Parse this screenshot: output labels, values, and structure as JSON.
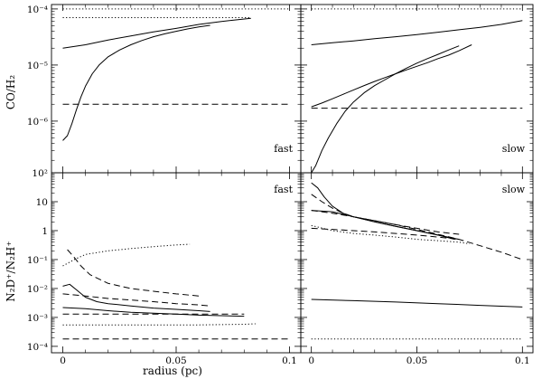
{
  "figure": {
    "ylabel_top": "CO/H₂",
    "ylabel_bottom": "N₂D⁺/N₂H⁺",
    "xlabel": "radius (pc)"
  },
  "chart_data": [
    {
      "type": "line",
      "label": "fast",
      "ylabel": "CO/H₂",
      "xlim": [
        -0.005,
        0.105
      ],
      "ylim": [
        1.2e-07,
        0.00012
      ],
      "yscale": "log",
      "ytick_values": [
        1e-07,
        1e-06,
        1e-05,
        0.0001
      ],
      "ytick_labels": [
        "10⁻⁷",
        "10⁻⁶",
        "10⁻⁵",
        "10⁻⁴"
      ],
      "series": [
        {
          "style": "solid",
          "x": [
            0,
            0.01,
            0.02,
            0.03,
            0.04,
            0.05,
            0.06,
            0.07,
            0.083
          ],
          "y": [
            2e-05,
            2.3e-05,
            2.8e-05,
            3.3e-05,
            3.9e-05,
            4.5e-05,
            5.3e-05,
            6e-05,
            6.8e-05
          ]
        },
        {
          "style": "solid",
          "x": [
            0,
            0.002,
            0.004,
            0.006,
            0.008,
            0.01,
            0.013,
            0.016,
            0.02,
            0.025,
            0.03,
            0.035,
            0.04,
            0.045,
            0.05,
            0.055,
            0.06,
            0.065
          ],
          "y": [
            4.5e-07,
            5.5e-07,
            9e-07,
            1.6e-06,
            2.7e-06,
            4.2e-06,
            7e-06,
            1e-05,
            1.4e-05,
            1.85e-05,
            2.3e-05,
            2.75e-05,
            3.2e-05,
            3.6e-05,
            4e-05,
            4.4e-05,
            4.8e-05,
            5.1e-05
          ]
        },
        {
          "style": "dotted",
          "x": [
            0,
            0.083
          ],
          "y": [
            7e-05,
            7e-05
          ]
        },
        {
          "style": "dotted",
          "x": [
            0,
            0.1
          ],
          "y": [
            0.0001,
            0.0001
          ]
        },
        {
          "style": "dashed",
          "x": [
            0,
            0.1
          ],
          "y": [
            2e-06,
            2e-06
          ]
        }
      ]
    },
    {
      "type": "line",
      "label": "slow",
      "ylabel": "",
      "xlim": [
        -0.005,
        0.105
      ],
      "ylim": [
        1.2e-07,
        0.00012
      ],
      "yscale": "log",
      "ytick_values": [
        1e-07,
        1e-06,
        1e-05,
        0.0001
      ],
      "ytick_labels": [],
      "series": [
        {
          "style": "solid",
          "x": [
            0,
            0.01,
            0.02,
            0.03,
            0.04,
            0.05,
            0.06,
            0.07,
            0.08,
            0.09,
            0.1
          ],
          "y": [
            2.3e-05,
            2.5e-05,
            2.7e-05,
            2.95e-05,
            3.2e-05,
            3.5e-05,
            3.85e-05,
            4.25e-05,
            4.7e-05,
            5.3e-05,
            6.2e-05
          ]
        },
        {
          "style": "solid",
          "x": [
            0,
            0.002,
            0.005,
            0.008,
            0.012,
            0.016,
            0.02,
            0.025,
            0.03,
            0.035,
            0.04,
            0.045,
            0.05,
            0.055,
            0.06,
            0.065,
            0.07
          ],
          "y": [
            1.2e-07,
            1.6e-07,
            3e-07,
            5e-07,
            9e-07,
            1.5e-06,
            2.2e-06,
            3.2e-06,
            4.3e-06,
            5.5e-06,
            7e-06,
            8.8e-06,
            1.08e-05,
            1.3e-05,
            1.55e-05,
            1.85e-05,
            2.2e-05
          ]
        },
        {
          "style": "solid",
          "x": [
            0,
            0.005,
            0.01,
            0.015,
            0.02,
            0.025,
            0.03,
            0.035,
            0.04,
            0.045,
            0.05,
            0.055,
            0.06,
            0.065,
            0.07,
            0.076
          ],
          "y": [
            1.8e-06,
            2.1e-06,
            2.5e-06,
            3e-06,
            3.6e-06,
            4.3e-06,
            5.1e-06,
            6e-06,
            7e-06,
            8.2e-06,
            9.5e-06,
            1.1e-05,
            1.3e-05,
            1.5e-05,
            1.8e-05,
            2.3e-05
          ]
        },
        {
          "style": "dotted",
          "x": [
            0,
            0.1
          ],
          "y": [
            0.0001,
            0.0001
          ]
        },
        {
          "style": "dashed",
          "x": [
            0,
            0.1
          ],
          "y": [
            1.7e-06,
            1.7e-06
          ]
        }
      ]
    },
    {
      "type": "line",
      "label": "fast",
      "ylabel": "N₂D⁺/N₂H⁺",
      "xlim": [
        -0.005,
        0.105
      ],
      "ylim": [
        6e-05,
        100
      ],
      "yscale": "log",
      "ytick_values": [
        0.0001,
        0.001,
        0.01,
        0.1,
        1,
        10,
        100
      ],
      "ytick_labels": [
        "10⁻⁴",
        "10⁻³",
        "10⁻²",
        "10⁻¹",
        "1",
        "10",
        "10²"
      ],
      "series": [
        {
          "style": "dotted",
          "x": [
            0,
            0.005,
            0.01,
            0.02,
            0.03,
            0.04,
            0.05,
            0.056
          ],
          "y": [
            0.06,
            0.1,
            0.15,
            0.2,
            0.24,
            0.28,
            0.32,
            0.34
          ]
        },
        {
          "style": "dashed",
          "x": [
            0.002,
            0.005,
            0.008,
            0.012,
            0.02,
            0.03,
            0.04,
            0.05,
            0.06
          ],
          "y": [
            0.22,
            0.12,
            0.06,
            0.03,
            0.015,
            0.01,
            0.008,
            0.0065,
            0.0055
          ]
        },
        {
          "style": "dashed",
          "x": [
            0,
            0.01,
            0.02,
            0.03,
            0.04,
            0.05,
            0.06,
            0.065
          ],
          "y": [
            0.0065,
            0.0055,
            0.0045,
            0.004,
            0.0035,
            0.003,
            0.0027,
            0.0025
          ]
        },
        {
          "style": "solid",
          "x": [
            0,
            0.003,
            0.006,
            0.01,
            0.015,
            0.02,
            0.03,
            0.04,
            0.05,
            0.06,
            0.065
          ],
          "y": [
            0.012,
            0.014,
            0.009,
            0.005,
            0.0035,
            0.003,
            0.0025,
            0.0021,
            0.0019,
            0.0017,
            0.0016
          ]
        },
        {
          "style": "solid",
          "x": [
            0,
            0.01,
            0.02,
            0.03,
            0.04,
            0.05,
            0.06,
            0.07,
            0.08
          ],
          "y": [
            0.0022,
            0.002,
            0.0017,
            0.0015,
            0.0014,
            0.0013,
            0.0012,
            0.00115,
            0.0011
          ]
        },
        {
          "style": "dashed",
          "x": [
            0,
            0.02,
            0.04,
            0.06,
            0.08
          ],
          "y": [
            0.0013,
            0.0013,
            0.0013,
            0.0013,
            0.0013
          ]
        },
        {
          "style": "dotted",
          "x": [
            0,
            0.02,
            0.04,
            0.06,
            0.08,
            0.085
          ],
          "y": [
            0.00055,
            0.00055,
            0.00055,
            0.00055,
            0.00058,
            0.0006
          ]
        },
        {
          "style": "dashed",
          "x": [
            0,
            0.1
          ],
          "y": [
            0.00018,
            0.00018
          ]
        }
      ]
    },
    {
      "type": "line",
      "label": "slow",
      "ylabel": "",
      "xlim": [
        -0.005,
        0.105
      ],
      "ylim": [
        6e-05,
        100
      ],
      "yscale": "log",
      "ytick_values": [
        0.0001,
        0.001,
        0.01,
        0.1,
        1,
        10,
        100
      ],
      "ytick_labels": [],
      "series": [
        {
          "style": "solid",
          "x": [
            0,
            0.003,
            0.006,
            0.01,
            0.015,
            0.02,
            0.03,
            0.04,
            0.05,
            0.06,
            0.068
          ],
          "y": [
            45,
            30,
            15,
            7,
            4,
            3,
            2,
            1.4,
            1.0,
            0.7,
            0.5
          ]
        },
        {
          "style": "dashed",
          "x": [
            0,
            0.005,
            0.01,
            0.015,
            0.02,
            0.03,
            0.04,
            0.05,
            0.06,
            0.07
          ],
          "y": [
            18,
            10,
            6,
            4,
            3,
            2.2,
            1.6,
            1.2,
            0.9,
            0.75
          ]
        },
        {
          "style": "solid",
          "x": [
            0,
            0.01,
            0.02,
            0.03,
            0.04,
            0.05,
            0.06,
            0.07
          ],
          "y": [
            5,
            4.5,
            3,
            2,
            1.4,
            1.0,
            0.7,
            0.5
          ]
        },
        {
          "style": "dashed",
          "x": [
            0,
            0.01,
            0.02,
            0.03,
            0.04,
            0.05,
            0.06,
            0.07,
            0.08,
            0.09,
            0.1
          ],
          "y": [
            5,
            4,
            3,
            2.2,
            1.6,
            1.1,
            0.75,
            0.5,
            0.3,
            0.18,
            0.1
          ]
        },
        {
          "style": "dashed",
          "x": [
            0,
            0.01,
            0.02,
            0.03,
            0.04,
            0.05,
            0.06,
            0.07
          ],
          "y": [
            1.2,
            1.1,
            1.0,
            0.9,
            0.8,
            0.7,
            0.6,
            0.5
          ]
        },
        {
          "style": "dotted",
          "x": [
            0,
            0.01,
            0.02,
            0.03,
            0.04,
            0.05,
            0.06,
            0.07,
            0.075
          ],
          "y": [
            1.5,
            1.0,
            0.8,
            0.7,
            0.6,
            0.5,
            0.45,
            0.4,
            0.35
          ]
        },
        {
          "style": "solid",
          "x": [
            0,
            0.02,
            0.04,
            0.06,
            0.08,
            0.1
          ],
          "y": [
            0.0042,
            0.0038,
            0.0034,
            0.003,
            0.0026,
            0.0023
          ]
        },
        {
          "style": "dotted",
          "x": [
            0,
            0.1
          ],
          "y": [
            0.00018,
            0.00018
          ]
        }
      ]
    }
  ]
}
